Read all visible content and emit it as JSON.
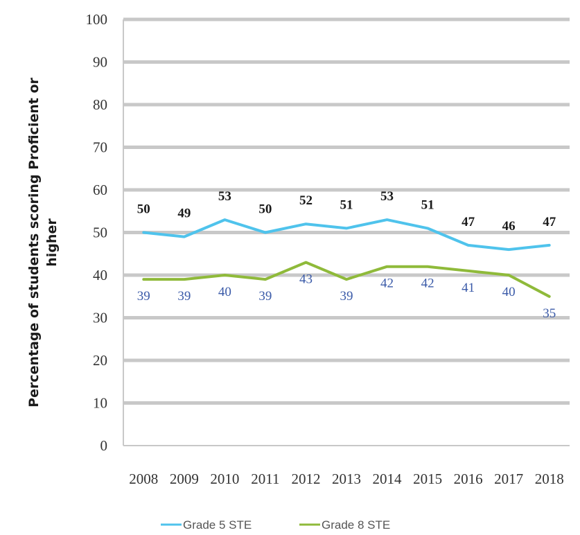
{
  "chart_data": {
    "type": "line",
    "title": "",
    "xlabel": "",
    "ylabel": "Percentage of students scoring Proficient or higher",
    "ylabel_lines": [
      "Percentage of students scoring Proficient or",
      "higher"
    ],
    "ylim": [
      0,
      100
    ],
    "yticks": [
      0,
      10,
      20,
      30,
      40,
      50,
      60,
      70,
      80,
      90,
      100
    ],
    "grid": true,
    "legend": "bottom",
    "categories": [
      "2008",
      "2009",
      "2010",
      "2011",
      "2012",
      "2013",
      "2014",
      "2015",
      "2016",
      "2017",
      "2018"
    ],
    "series": [
      {
        "name": "Grade 5 STE",
        "color": "#4fc3ec",
        "values": [
          50,
          49,
          53,
          50,
          52,
          51,
          53,
          51,
          47,
          46,
          47
        ]
      },
      {
        "name": "Grade 8 STE",
        "color": "#8fba3a",
        "values": [
          39,
          39,
          40,
          39,
          43,
          39,
          42,
          42,
          41,
          40,
          35
        ]
      }
    ]
  }
}
